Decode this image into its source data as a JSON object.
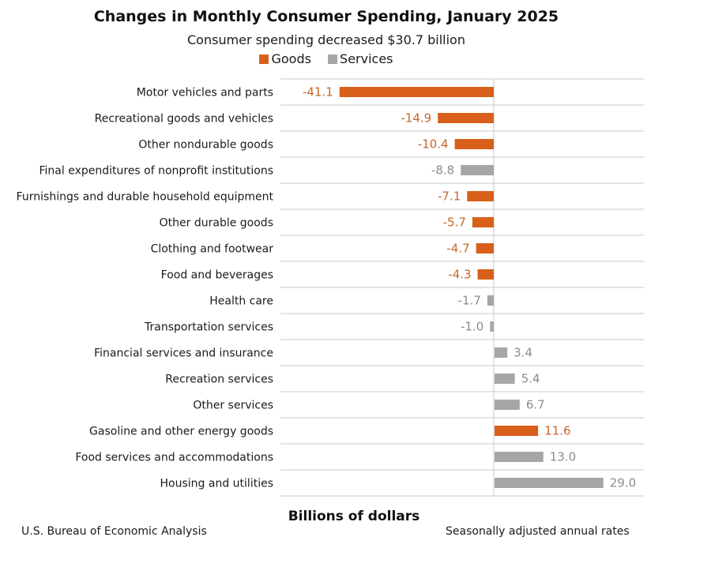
{
  "chart_data": {
    "type": "bar",
    "orientation": "horizontal",
    "title": "Changes in Monthly Consumer Spending, January 2025",
    "subtitle": "Consumer spending decreased $30.7 billion",
    "xlabel": "Billions of dollars",
    "ylabel": "",
    "xlim": [
      -41.1,
      40
    ],
    "grid": true,
    "legend": {
      "placement": "top-center",
      "entries": [
        {
          "name": "Goods",
          "color": "#d9601a"
        },
        {
          "name": "Services",
          "color": "#a6a6a6"
        }
      ]
    },
    "label_colors": {
      "Goods": "#c8662a",
      "Services": "#8c8c8c"
    },
    "categories": [
      "Motor vehicles and parts",
      "Recreational goods and vehicles",
      "Other nondurable goods",
      "Final expenditures of nonprofit institutions",
      "Furnishings and durable household equipment",
      "Other durable goods",
      "Clothing and footwear",
      "Food and beverages",
      "Health care",
      "Transportation services",
      "Financial services and insurance",
      "Recreation services",
      "Other services",
      "Gasoline and other energy goods",
      "Food services and accommodations",
      "Housing and utilities"
    ],
    "values": [
      -41.1,
      -14.9,
      -10.4,
      -8.8,
      -7.1,
      -5.7,
      -4.7,
      -4.3,
      -1.7,
      -1.0,
      3.4,
      5.4,
      6.7,
      11.6,
      13.0,
      29.0
    ],
    "value_labels": [
      "-41.1",
      "-14.9",
      "-10.4",
      "-8.8",
      "-7.1",
      "-5.7",
      "-4.7",
      "-4.3",
      "-1.7",
      "-1.0",
      "3.4",
      "5.4",
      "6.7",
      "11.6",
      "13.0",
      "29.0"
    ],
    "series_type": [
      "Goods",
      "Goods",
      "Goods",
      "Services",
      "Goods",
      "Goods",
      "Goods",
      "Goods",
      "Services",
      "Services",
      "Services",
      "Services",
      "Services",
      "Goods",
      "Services",
      "Services"
    ]
  },
  "footer": {
    "source": "U.S. Bureau of Economic Analysis",
    "note": "Seasonally adjusted annual rates"
  }
}
